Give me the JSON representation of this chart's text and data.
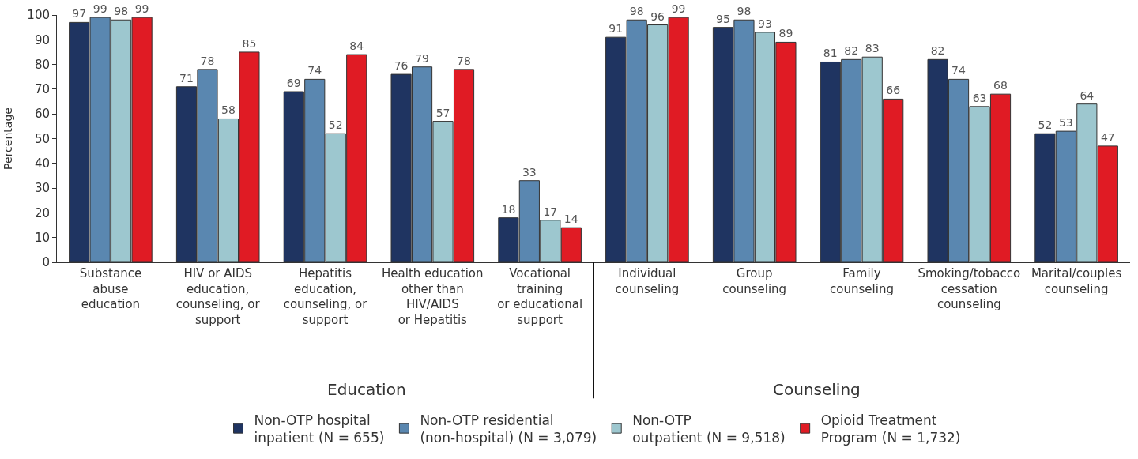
{
  "chart_data": {
    "type": "bar",
    "ylabel": "Percentage",
    "categories": [
      "Substance\nabuse\neducation",
      "HIV or AIDS\neducation,\ncounseling, or\nsupport",
      "Hepatitis\neducation,\ncounseling, or\nsupport",
      "Health education\nother than\nHIV/AIDS\nor Hepatitis",
      "Vocational\ntraining\nor educational\nsupport",
      "Individual\ncounseling",
      "Group\ncounseling",
      "Family\ncounseling",
      "Smoking/tobacco\ncessation\ncounseling",
      "Marital/couples\ncounseling"
    ],
    "series": [
      {
        "name": "Non-OTP hospital\ninpatient (N = 655)",
        "color": "#1f3461",
        "values": [
          97,
          71,
          69,
          76,
          18,
          91,
          95,
          81,
          82,
          52
        ]
      },
      {
        "name": "Non-OTP residential\n(non-hospital) (N = 3,079)",
        "color": "#5a87b0",
        "values": [
          99,
          78,
          74,
          79,
          33,
          98,
          98,
          82,
          74,
          53
        ]
      },
      {
        "name": "Non-OTP\noutpatient (N = 9,518)",
        "color": "#9dc7cf",
        "values": [
          98,
          58,
          52,
          57,
          17,
          96,
          93,
          83,
          63,
          64
        ]
      },
      {
        "name": "Opioid Treatment\nProgram (N = 1,732)",
        "color": "#e01b24",
        "values": [
          99,
          85,
          84,
          78,
          14,
          99,
          89,
          66,
          68,
          47
        ]
      }
    ],
    "ylim": [
      0,
      100
    ],
    "yticks": [
      0,
      10,
      20,
      30,
      40,
      50,
      60,
      70,
      80,
      90,
      100
    ],
    "data_labels": true,
    "legend": "bottom",
    "annotations": [
      "Education",
      "Counseling"
    ]
  }
}
